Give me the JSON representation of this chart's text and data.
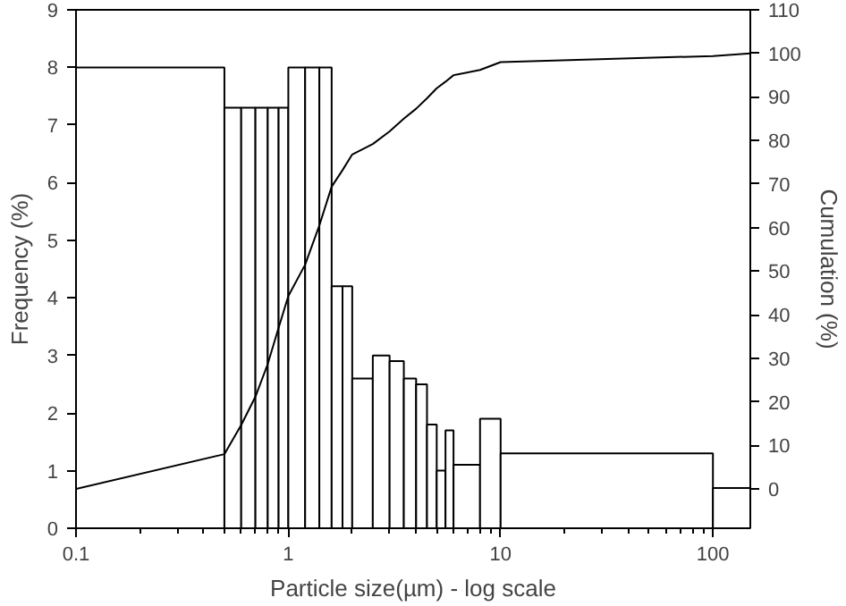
{
  "chart_data": {
    "type": "histogram",
    "xlabel": "Particle size(µm) - log scale",
    "ylabel": "Frequency (%)",
    "y2label": "Cumulation (%)",
    "log": "x",
    "bins": [
      0.1,
      0.5,
      0.6,
      0.7,
      0.8,
      0.9,
      1,
      1.2,
      1.4,
      1.6,
      1.8,
      2,
      2.5,
      3,
      3.5,
      4,
      4.5,
      5,
      5.5,
      6,
      8,
      10,
      100,
      150
    ],
    "values": [
      8,
      7.3,
      7.3,
      7.3,
      7.3,
      7.3,
      8,
      8,
      8,
      4.2,
      4.2,
      2.6,
      3,
      2.9,
      2.6,
      2.5,
      1.8,
      1,
      1.7,
      1.1,
      1.9,
      1.3,
      0.7
    ],
    "color": "#ffffff",
    "series": [
      {
        "type": "line",
        "axis": "y2",
        "color": "#000000",
        "x": [
          0.1,
          0.5,
          0.6,
          0.7,
          0.8,
          0.9,
          1,
          1.2,
          1.4,
          1.6,
          1.8,
          2,
          2.5,
          3,
          3.5,
          4,
          4.5,
          5,
          5.5,
          6,
          8,
          10,
          100,
          150
        ],
        "values": [
          0,
          8,
          14.7,
          21.2,
          28.7,
          37,
          44.3,
          51.5,
          60.5,
          69.4,
          73.2,
          76.8,
          79.2,
          82.1,
          85,
          87.3,
          89.7,
          92,
          93.5,
          95,
          96.2,
          98,
          99.4,
          100
        ]
      }
    ],
    "xlim": [
      0.1,
      150
    ],
    "xticks": [
      0.1,
      1,
      10,
      100
    ],
    "ylim": [
      0,
      9
    ],
    "yticks": [
      0,
      1,
      2,
      3,
      4,
      5,
      6,
      7,
      8,
      9
    ],
    "y2lim": [
      -9,
      110
    ],
    "y2ticks": [
      0,
      10,
      20,
      30,
      40,
      50,
      60,
      70,
      80,
      90,
      100,
      110
    ],
    "grid": false
  }
}
